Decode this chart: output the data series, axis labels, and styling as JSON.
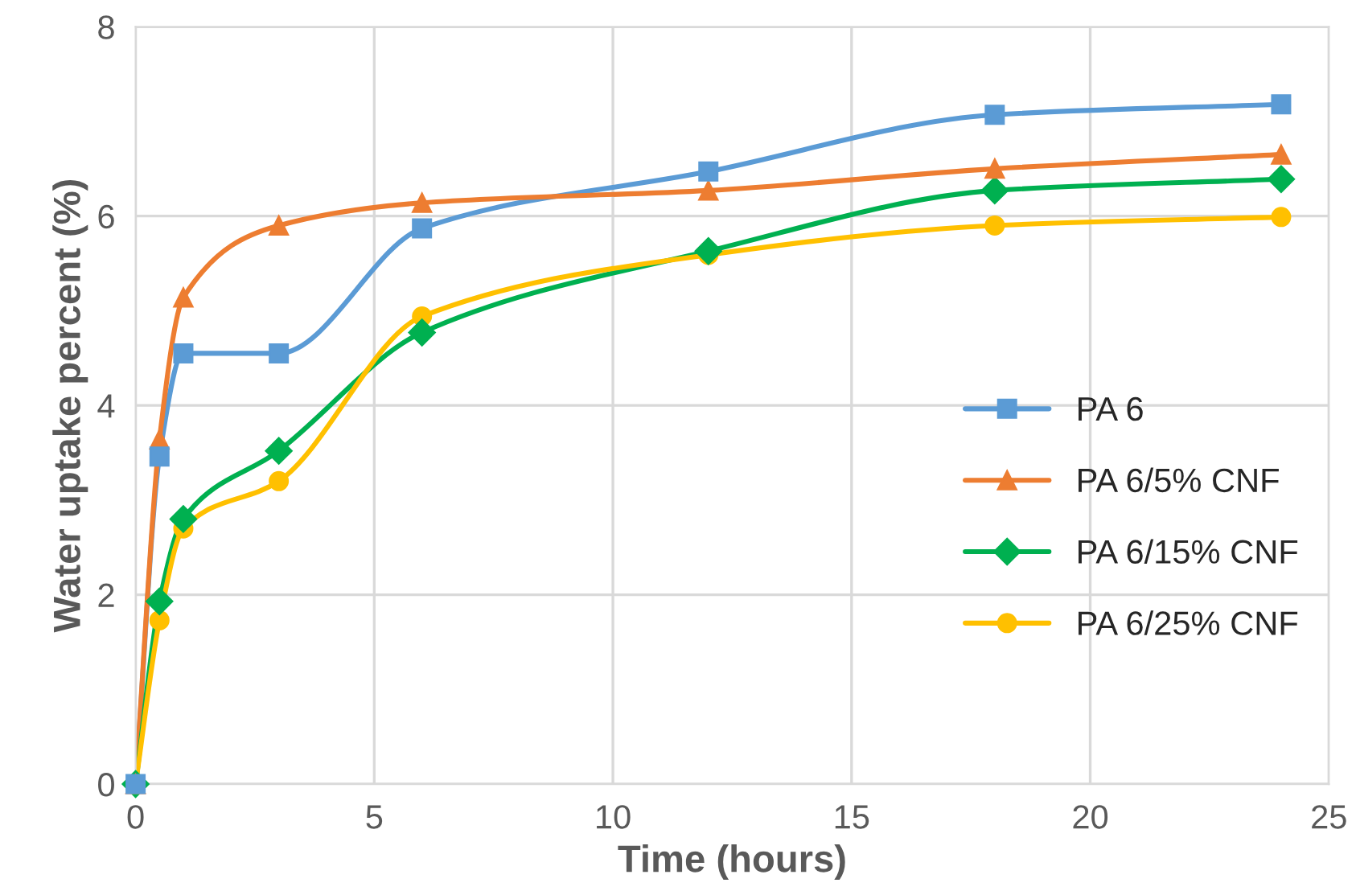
{
  "chart_data": {
    "type": "line",
    "xlabel": "Time (hours)",
    "ylabel": "Water uptake percent (%)",
    "x": [
      0,
      0.5,
      1,
      3,
      6,
      12,
      18,
      24
    ],
    "xlim": [
      0,
      25
    ],
    "xticks": [
      0,
      5,
      10,
      15,
      20,
      25
    ],
    "ylim": [
      0,
      8
    ],
    "yticks": [
      0,
      2,
      4,
      6,
      8
    ],
    "grid": true,
    "legend": "right",
    "line_style": "solid",
    "series": [
      {
        "name": "PA 6",
        "color": "#5b9bd5",
        "marker": "square",
        "values": [
          0,
          3.46,
          4.55,
          4.55,
          5.87,
          6.47,
          7.07,
          7.18
        ]
      },
      {
        "name": "PA 6/5% CNF",
        "color": "#ed7d31",
        "marker": "triangle",
        "values": [
          0,
          3.64,
          5.14,
          5.9,
          6.14,
          6.27,
          6.5,
          6.65
        ]
      },
      {
        "name": "PA 6/15% CNF",
        "color": "#00b050",
        "marker": "diamond",
        "values": [
          0,
          1.93,
          2.8,
          3.52,
          4.77,
          5.63,
          6.27,
          6.39
        ]
      },
      {
        "name": "PA 6/25% CNF",
        "color": "#ffc000",
        "marker": "circle",
        "values": [
          0,
          1.73,
          2.7,
          3.2,
          4.94,
          5.59,
          5.9,
          5.99
        ]
      }
    ]
  }
}
